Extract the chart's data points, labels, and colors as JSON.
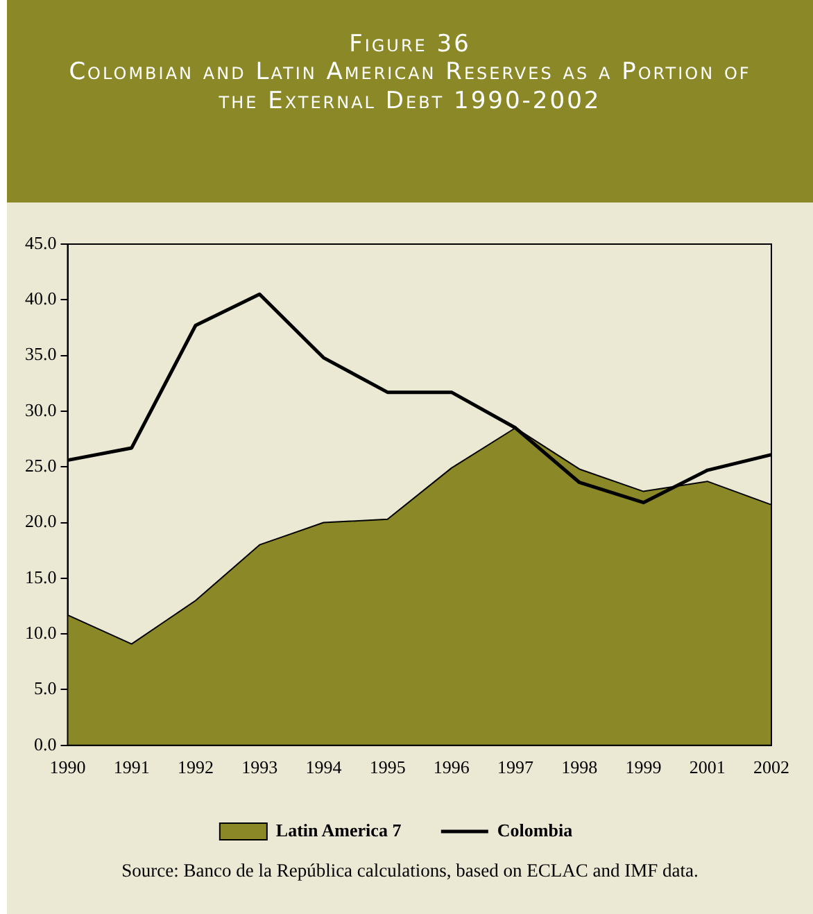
{
  "chart_data": {
    "type": "line",
    "title": "Figure 36",
    "subtitle": "Colombian and Latin American Reserves as a Portion of the External Debt 1990-2002",
    "categories": [
      "1990",
      "1991",
      "1992",
      "1993",
      "1994",
      "1995",
      "1996",
      "1997",
      "1998",
      "1999",
      "2001",
      "2002"
    ],
    "series": [
      {
        "name": "Latin America 7",
        "type": "area",
        "color": "#8b8828",
        "values": [
          11.7,
          9.1,
          13.0,
          18.0,
          20.0,
          20.3,
          24.9,
          28.5,
          24.8,
          22.8,
          23.7,
          21.6
        ]
      },
      {
        "name": "Colombia",
        "type": "line",
        "color": "#000000",
        "values": [
          25.6,
          26.7,
          37.7,
          40.5,
          34.8,
          31.7,
          31.7,
          28.5,
          23.6,
          21.8,
          24.7,
          26.1
        ]
      }
    ],
    "ylim": [
      0,
      45
    ],
    "yticks": [
      {
        "value": 0,
        "label": "0.0"
      },
      {
        "value": 5,
        "label": "5.0"
      },
      {
        "value": 10,
        "label": "10.0"
      },
      {
        "value": 15,
        "label": "15.0"
      },
      {
        "value": 20,
        "label": "20.0"
      },
      {
        "value": 25,
        "label": "25.0"
      },
      {
        "value": 30,
        "label": "30.0"
      },
      {
        "value": 35,
        "label": "35.0"
      },
      {
        "value": 40,
        "label": "40.0"
      },
      {
        "value": 45,
        "label": "45.0"
      }
    ],
    "grid": false,
    "legend": "bottom",
    "marker": "none",
    "annotations": [
      "Source: Banco de la República calculations, based on ECLAC and IMF data."
    ]
  }
}
